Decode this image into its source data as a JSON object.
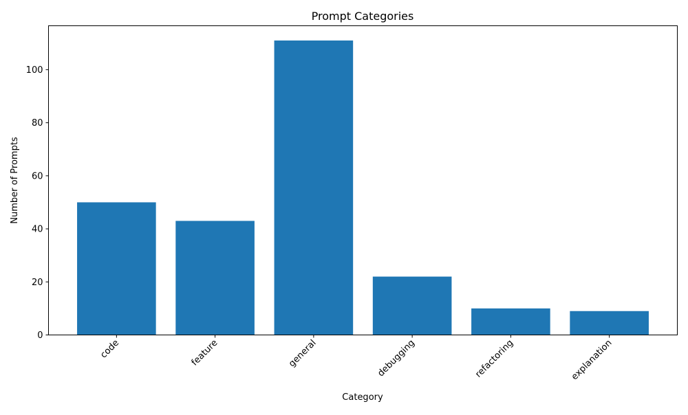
{
  "chart_data": {
    "type": "bar",
    "title": "Prompt Categories",
    "xlabel": "Category",
    "ylabel": "Number of Prompts",
    "categories": [
      "code",
      "feature",
      "general",
      "debugging",
      "refactoring",
      "explanation"
    ],
    "values": [
      50,
      43,
      111,
      22,
      10,
      9
    ],
    "ylim": [
      0,
      116.55
    ],
    "yticks": [
      0,
      20,
      40,
      60,
      80,
      100
    ],
    "xtick_rotation_deg": 45,
    "grid": false,
    "legend": "none",
    "bar_color": "#1f77b4"
  }
}
